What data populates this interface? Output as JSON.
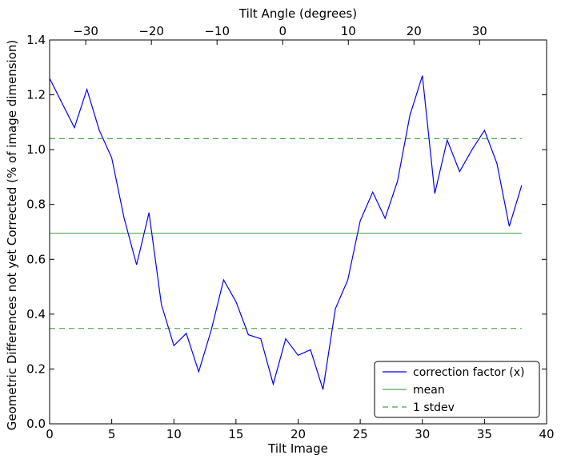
{
  "chart_data": {
    "type": "line",
    "xlabel": "Tilt Image",
    "ylabel": "Geometric Differences not yet Corrected (% of image dimension)",
    "top_xlabel": "Tilt Angle (degrees)",
    "xlim": [
      0,
      40
    ],
    "ylim": [
      0.0,
      1.4
    ],
    "top_xlim": [
      -35.5,
      40.2
    ],
    "xticks": [
      "0",
      "5",
      "10",
      "15",
      "20",
      "25",
      "30",
      "35",
      "40"
    ],
    "xtick_values": [
      0,
      5,
      10,
      15,
      20,
      25,
      30,
      35,
      40
    ],
    "yticks": [
      "0.0",
      "0.2",
      "0.4",
      "0.6",
      "0.8",
      "1.0",
      "1.2",
      "1.4"
    ],
    "ytick_values": [
      0.0,
      0.2,
      0.4,
      0.6,
      0.8,
      1.0,
      1.2,
      1.4
    ],
    "top_xticks": [
      "−30",
      "−20",
      "−10",
      "0",
      "10",
      "20",
      "30"
    ],
    "top_xtick_values": [
      -30,
      -20,
      -10,
      0,
      10,
      20,
      30
    ],
    "grid": false,
    "legend_position": "lower-right",
    "series": [
      {
        "name": "correction factor (x)",
        "style": "solid",
        "color": "#0000ff",
        "x": [
          0,
          1,
          2,
          3,
          4,
          5,
          6,
          7,
          8,
          9,
          10,
          11,
          12,
          13,
          14,
          15,
          16,
          17,
          18,
          19,
          20,
          21,
          22,
          23,
          24,
          25,
          26,
          27,
          28,
          29,
          30,
          31,
          32,
          33,
          34,
          35,
          36,
          37,
          38
        ],
        "y": [
          1.26,
          1.17,
          1.08,
          1.22,
          1.07,
          0.97,
          0.75,
          0.58,
          0.77,
          0.435,
          0.285,
          0.33,
          0.19,
          0.34,
          0.525,
          0.445,
          0.325,
          0.31,
          0.145,
          0.31,
          0.25,
          0.27,
          0.125,
          0.42,
          0.525,
          0.74,
          0.845,
          0.75,
          0.885,
          1.125,
          1.27,
          0.84,
          1.035,
          0.92,
          1.0,
          1.07,
          0.95,
          0.72,
          0.87
        ]
      },
      {
        "name": "mean",
        "style": "solid",
        "color": "#008000",
        "x": [
          0,
          38
        ],
        "y": [
          0.695,
          0.695
        ]
      },
      {
        "name": "1 stdev",
        "style": "dashed",
        "color": "#008000",
        "x": [
          0,
          38
        ],
        "y": [
          1.04,
          1.04
        ],
        "x2": [
          0,
          38
        ],
        "y2": [
          0.348,
          0.348
        ]
      }
    ]
  }
}
